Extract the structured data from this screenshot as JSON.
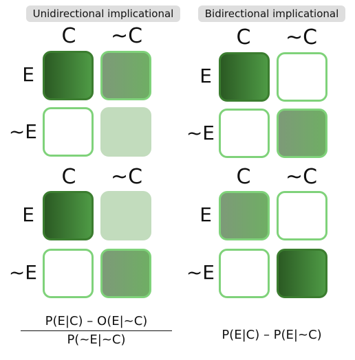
{
  "panels": [
    {
      "title": "Unidirectional implicational",
      "grids": [
        {
          "col_labels": [
            "C",
            "~C"
          ],
          "row_labels": [
            "E",
            "~E"
          ],
          "cells": [
            {
              "shade": "dark",
              "row": "E",
              "col": "C"
            },
            {
              "shade": "medium",
              "row": "E",
              "col": "~C"
            },
            {
              "shade": "empty",
              "row": "~E",
              "col": "C"
            },
            {
              "shade": "light",
              "row": "~E",
              "col": "~C"
            }
          ]
        },
        {
          "col_labels": [
            "C",
            "~C"
          ],
          "row_labels": [
            "E",
            "~E"
          ],
          "cells": [
            {
              "shade": "dark",
              "row": "E",
              "col": "C"
            },
            {
              "shade": "light",
              "row": "E",
              "col": "~C"
            },
            {
              "shade": "empty",
              "row": "~E",
              "col": "C"
            },
            {
              "shade": "medium",
              "row": "~E",
              "col": "~C"
            }
          ]
        }
      ],
      "formula": {
        "numerator": "P(E|C) – O(E|~C)",
        "denominator": "P(~E|~C)"
      }
    },
    {
      "title": "Bidirectional implicational",
      "grids": [
        {
          "col_labels": [
            "C",
            "~C"
          ],
          "row_labels": [
            "E",
            "~E"
          ],
          "cells": [
            {
              "shade": "dark",
              "row": "E",
              "col": "C"
            },
            {
              "shade": "empty",
              "row": "E",
              "col": "~C"
            },
            {
              "shade": "empty",
              "row": "~E",
              "col": "C"
            },
            {
              "shade": "medium",
              "row": "~E",
              "col": "~C"
            }
          ]
        },
        {
          "col_labels": [
            "C",
            "~C"
          ],
          "row_labels": [
            "E",
            "~E"
          ],
          "cells": [
            {
              "shade": "medium",
              "row": "E",
              "col": "C"
            },
            {
              "shade": "empty",
              "row": "E",
              "col": "~C"
            },
            {
              "shade": "empty",
              "row": "~E",
              "col": "C"
            },
            {
              "shade": "dark",
              "row": "~E",
              "col": "~C"
            }
          ]
        }
      ],
      "formula": {
        "text": "P(E|C) – P(E|~C)"
      }
    }
  ],
  "colors": {
    "dark_fill_start": "#2b5a23",
    "dark_fill_end": "#4e9a45",
    "medium_fill_start": "#7d9a78",
    "medium_fill_end": "#6fae64",
    "light_fill": "#c2dcbd",
    "empty_fill": "#ffffff",
    "border_light": "#7fd27a",
    "border_dark": "#3b7d2f",
    "title_bg": "#dedede"
  }
}
